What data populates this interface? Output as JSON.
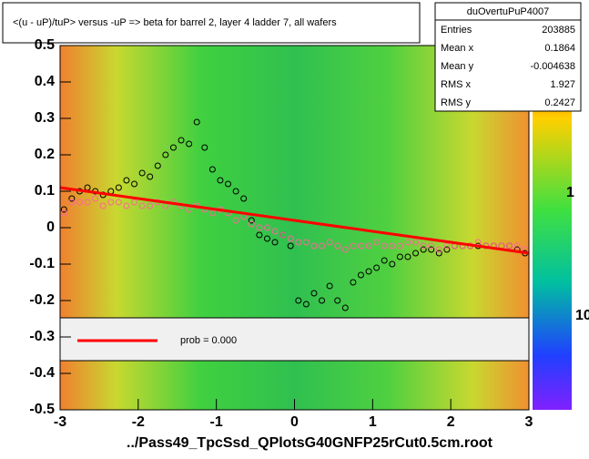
{
  "chart_data": {
    "type": "scatter",
    "title": "<(u - uP)/tuP> versus  -uP => beta for barrel 2, layer 4 ladder 7, all wafers",
    "x_label": "../Pass49_TpcSsd_QPlotsG40GNFP25rCut0.5cm.root",
    "xlim": [
      -3,
      3
    ],
    "ylim": [
      -0.5,
      0.5
    ],
    "xticks": [
      -3,
      -2,
      -1,
      0,
      1,
      2,
      3
    ],
    "yticks": [
      -0.5,
      -0.4,
      -0.3,
      -0.2,
      -0.1,
      0,
      0.1,
      0.2,
      0.3,
      0.4,
      0.5
    ],
    "z_labels": [
      "1",
      "10"
    ],
    "stats": {
      "title": "duOvertuPuP4007",
      "rows": [
        [
          "Entries",
          "203885"
        ],
        [
          "Mean x",
          "0.1864"
        ],
        [
          "Mean y",
          "-0.004638"
        ],
        [
          "RMS x",
          "1.927"
        ],
        [
          "RMS y",
          "0.2427"
        ]
      ]
    },
    "legend_text": "prob = 0.000",
    "x": [
      -2.95,
      -2.85,
      -2.75,
      -2.65,
      -2.55,
      -2.45,
      -2.35,
      -2.25,
      -2.15,
      -2.05,
      -1.95,
      -1.85,
      -1.75,
      -1.65,
      -1.55,
      -1.45,
      -1.35,
      -1.25,
      -1.15,
      -1.05,
      -0.95,
      -0.85,
      -0.75,
      -0.65,
      -0.55,
      -0.45,
      -0.35,
      -0.25,
      -0.15,
      -0.05,
      0.05,
      0.15,
      0.25,
      0.35,
      0.45,
      0.55,
      0.65,
      0.75,
      0.85,
      0.95,
      1.05,
      1.15,
      1.25,
      1.35,
      1.45,
      1.55,
      1.65,
      1.75,
      1.85,
      1.95,
      2.05,
      2.15,
      2.25,
      2.35,
      2.45,
      2.55,
      2.65,
      2.75,
      2.85,
      2.95
    ],
    "series": [
      {
        "color": "#000000",
        "values": [
          0.05,
          0.08,
          0.1,
          0.11,
          0.1,
          0.09,
          0.1,
          0.11,
          0.13,
          0.12,
          0.15,
          0.14,
          0.17,
          0.2,
          0.22,
          0.24,
          0.23,
          0.29,
          0.22,
          0.16,
          0.13,
          0.12,
          0.1,
          0.08,
          0.02,
          -0.02,
          -0.03,
          -0.04,
          -0.02,
          -0.05,
          -0.2,
          -0.21,
          -0.18,
          -0.2,
          -0.16,
          -0.2,
          -0.22,
          -0.15,
          -0.13,
          -0.12,
          -0.11,
          -0.09,
          -0.1,
          -0.08,
          -0.08,
          -0.07,
          -0.06,
          -0.06,
          -0.07,
          -0.06,
          -0.05,
          -0.05,
          -0.05,
          -0.05,
          -0.05,
          -0.05,
          -0.05,
          -0.05,
          -0.06,
          -0.07
        ]
      },
      {
        "color": "#ff6699",
        "values": [
          0.04,
          0.07,
          0.07,
          0.07,
          0.08,
          0.06,
          0.07,
          0.07,
          0.06,
          0.07,
          0.06,
          0.06,
          0.07,
          0.06,
          0.07,
          0.06,
          0.05,
          0.06,
          0.05,
          0.04,
          0.05,
          0.04,
          0.02,
          0.03,
          0.01,
          0.0,
          0.0,
          -0.01,
          -0.02,
          -0.03,
          -0.04,
          -0.04,
          -0.05,
          -0.05,
          -0.04,
          -0.05,
          -0.06,
          -0.05,
          -0.05,
          -0.05,
          -0.04,
          -0.05,
          -0.05,
          -0.05,
          -0.04,
          -0.04,
          -0.05,
          -0.05,
          -0.06,
          -0.05,
          -0.05,
          -0.05,
          -0.05,
          -0.04,
          -0.05,
          -0.05,
          -0.05,
          -0.05,
          -0.05,
          -0.06
        ]
      }
    ],
    "fit": {
      "color": "#ff0000",
      "x": [
        -3,
        3
      ],
      "values": [
        0.11,
        -0.07
      ]
    }
  }
}
